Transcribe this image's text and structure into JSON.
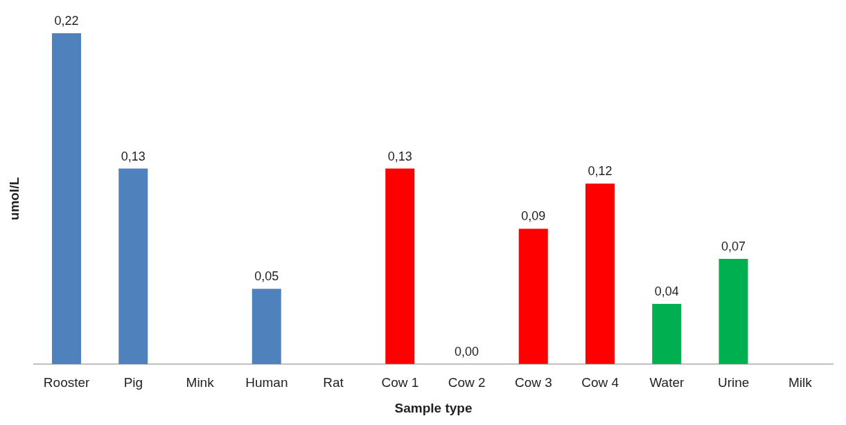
{
  "chart_data": {
    "type": "bar",
    "xlabel": "Sample type",
    "ylabel": "umol/L",
    "categories": [
      "Rooster",
      "Pig",
      "Mink",
      "Human",
      "Rat",
      "Cow 1",
      "Cow 2",
      "Cow 3",
      "Cow 4",
      "Water",
      "Urine",
      "Milk"
    ],
    "values": [
      0.22,
      0.13,
      null,
      0.05,
      null,
      0.13,
      0.0,
      0.09,
      0.12,
      0.04,
      0.07,
      null
    ],
    "colors": [
      "#4f81bd",
      "#4f81bd",
      "#4f81bd",
      "#4f81bd",
      "#4f81bd",
      "#ff0000",
      "#ff0000",
      "#ff0000",
      "#ff0000",
      "#00b050",
      "#00b050",
      "#00b050"
    ],
    "value_labels": [
      "0,22",
      "0,13",
      null,
      "0,05",
      null,
      "0,13",
      "0,00",
      "0,09",
      "0,12",
      "0,04",
      "0,07",
      null
    ]
  }
}
